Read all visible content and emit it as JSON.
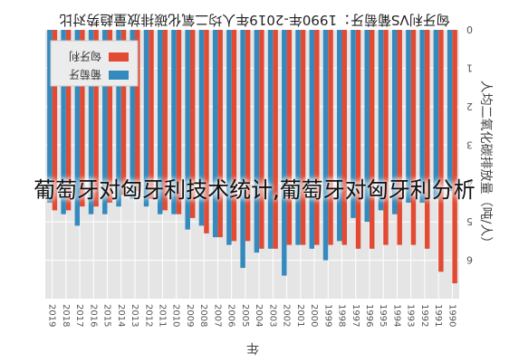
{
  "overlay_caption": "葡萄牙对匈牙利技术统计,葡萄牙对匈牙利分析",
  "chart_data": {
    "type": "bar",
    "orientation": "rotated-180",
    "title": "匈牙利VS葡萄牙：1990年-2019年人均二氧化碳排放量趋势对比",
    "xlabel": "年",
    "ylabel": "人均二氧化碳排放量（吨/人）",
    "ylim": [
      0,
      7
    ],
    "yticks": [
      0,
      1,
      2,
      3,
      4,
      5,
      6
    ],
    "legend_position": "upper-left (as rendered, rotated)",
    "grid": true,
    "categories": [
      "1990",
      "1991",
      "1992",
      "1993",
      "1994",
      "1995",
      "1996",
      "1997",
      "1998",
      "1999",
      "2000",
      "2001",
      "2002",
      "2003",
      "2004",
      "2005",
      "2006",
      "2007",
      "2008",
      "2009",
      "2010",
      "2011",
      "2012",
      "2013",
      "2014",
      "2015",
      "2016",
      "2017",
      "2018",
      "2019"
    ],
    "series": [
      {
        "name": "匈牙利",
        "color": "#e24a33",
        "values": [
          6.6,
          6.3,
          5.7,
          5.6,
          5.6,
          5.6,
          5.7,
          5.7,
          5.6,
          5.6,
          5.6,
          5.6,
          5.6,
          5.7,
          5.7,
          5.5,
          5.5,
          5.4,
          5.3,
          4.9,
          4.8,
          4.7,
          4.4,
          4.2,
          4.3,
          4.5,
          4.6,
          4.6,
          4.7,
          4.7
        ]
      },
      {
        "name": "葡萄牙",
        "color": "#348abd",
        "values": [
          4.2,
          4.4,
          4.5,
          4.5,
          4.8,
          4.7,
          5.0,
          4.9,
          5.5,
          6.0,
          5.7,
          5.6,
          6.4,
          5.7,
          5.8,
          6.2,
          5.6,
          5.4,
          5.1,
          5.2,
          4.8,
          4.8,
          4.6,
          4.4,
          4.6,
          4.8,
          4.8,
          5.1,
          4.8,
          4.5
        ]
      }
    ]
  },
  "colors": {
    "plot_background": "#e5e5e5",
    "grid": "#ffffff",
    "text": "#555555"
  }
}
